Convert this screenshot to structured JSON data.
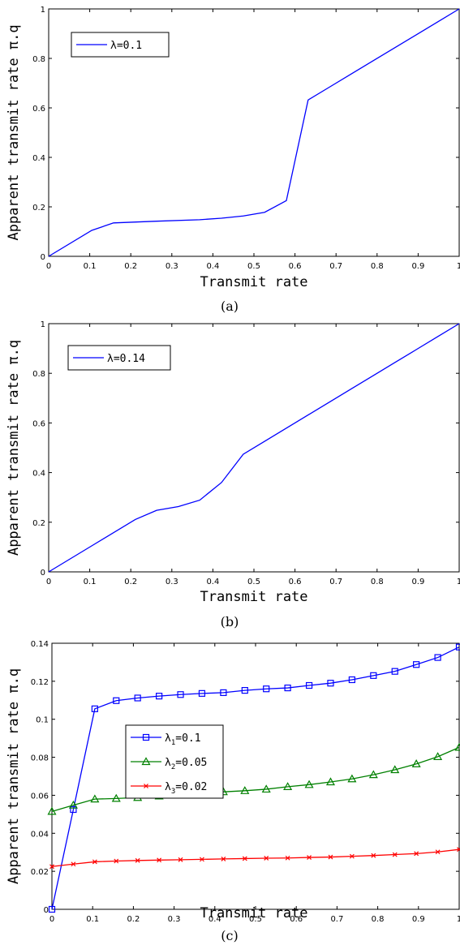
{
  "chart_data": [
    {
      "type": "line",
      "panel": "a",
      "caption": "(a)",
      "xlabel": "Transmit rate",
      "ylabel": "Apparent transmit rate π.q",
      "xlim": [
        0,
        1
      ],
      "ylim": [
        0,
        1
      ],
      "xticks": [
        "0",
        "0.1",
        "0.2",
        "0.3",
        "0.4",
        "0.5",
        "0.6",
        "0.7",
        "0.8",
        "0.9",
        "1"
      ],
      "yticks": [
        "0",
        "0.2",
        "0.4",
        "0.6",
        "0.8",
        "1"
      ],
      "legend_position": "top-left",
      "series": [
        {
          "name": "λ=0.1",
          "color": "#0000ff",
          "marker": "none",
          "x": [
            0,
            0.105,
            0.158,
            0.263,
            0.368,
            0.421,
            0.474,
            0.526,
            0.579,
            0.632,
            0.684,
            0.737,
            0.789,
            0.842,
            0.895,
            0.947,
            1.0
          ],
          "y": [
            0,
            0.105,
            0.135,
            0.142,
            0.148,
            0.154,
            0.163,
            0.178,
            0.225,
            0.632,
            0.684,
            0.737,
            0.789,
            0.842,
            0.895,
            0.947,
            1.0
          ]
        }
      ]
    },
    {
      "type": "line",
      "panel": "b",
      "caption": "(b)",
      "xlabel": "Transmit rate",
      "ylabel": "Apparent transmit rate π.q",
      "xlim": [
        0,
        1
      ],
      "ylim": [
        0,
        1
      ],
      "xticks": [
        "0",
        "0.1",
        "0.2",
        "0.3",
        "0.4",
        "0.5",
        "0.6",
        "0.7",
        "0.8",
        "0.9",
        "1"
      ],
      "yticks": [
        "0",
        "0.2",
        "0.4",
        "0.6",
        "0.8",
        "1"
      ],
      "legend_position": "top-left",
      "series": [
        {
          "name": "λ=0.14",
          "color": "#0000ff",
          "marker": "none",
          "x": [
            0,
            0.105,
            0.211,
            0.263,
            0.316,
            0.368,
            0.421,
            0.474,
            0.526,
            0.579,
            0.632,
            0.684,
            0.737,
            0.789,
            0.842,
            0.895,
            0.947,
            1.0
          ],
          "y": [
            0,
            0.105,
            0.211,
            0.248,
            0.263,
            0.289,
            0.36,
            0.474,
            0.526,
            0.579,
            0.632,
            0.684,
            0.737,
            0.789,
            0.842,
            0.895,
            0.947,
            1.0
          ]
        }
      ]
    },
    {
      "type": "line",
      "panel": "c",
      "caption": "(c)",
      "xlabel": "Transmit rate",
      "ylabel": "Apparent transmit rate π.q",
      "xlim": [
        0,
        1
      ],
      "ylim": [
        0,
        0.14
      ],
      "xticks": [
        "0",
        "0.1",
        "0.2",
        "0.3",
        "0.4",
        "0.5",
        "0.6",
        "0.7",
        "0.8",
        "0.9",
        "1"
      ],
      "yticks": [
        "0",
        "0.02",
        "0.04",
        "0.06",
        "0.08",
        "0.1",
        "0.12",
        "0.14"
      ],
      "legend_position": "center-left",
      "x": [
        0,
        0.0526,
        0.1053,
        0.1579,
        0.2105,
        0.2632,
        0.3158,
        0.3684,
        0.4211,
        0.4737,
        0.5263,
        0.5789,
        0.6316,
        0.6842,
        0.7368,
        0.7895,
        0.8421,
        0.8947,
        0.9474,
        1.0
      ],
      "series": [
        {
          "name": "λ1=0.1",
          "name_base": "λ",
          "name_sub": "1",
          "name_rest": "=0.1",
          "color": "#0000ff",
          "marker": "square",
          "values": [
            0.0,
            0.0525,
            0.1055,
            0.1098,
            0.1112,
            0.1122,
            0.113,
            0.1136,
            0.114,
            0.1152,
            0.116,
            0.1165,
            0.1178,
            0.119,
            0.1208,
            0.123,
            0.1252,
            0.1288,
            0.1325,
            0.138
          ]
        },
        {
          "name": "λ2=0.05",
          "name_base": "λ",
          "name_sub": "2",
          "name_rest": "=0.05",
          "color": "#008000",
          "marker": "triangle",
          "values": [
            0.0515,
            0.0548,
            0.058,
            0.0583,
            0.0588,
            0.0596,
            0.0604,
            0.0612,
            0.0618,
            0.0624,
            0.0632,
            0.0645,
            0.0656,
            0.067,
            0.0686,
            0.0708,
            0.0734,
            0.0765,
            0.0803,
            0.0852
          ]
        },
        {
          "name": "λ3=0.02",
          "name_base": "λ",
          "name_sub": "3",
          "name_rest": "=0.02",
          "color": "#ff0000",
          "marker": "x",
          "values": [
            0.0225,
            0.0238,
            0.025,
            0.0254,
            0.0257,
            0.0259,
            0.0261,
            0.0263,
            0.0265,
            0.0267,
            0.0269,
            0.027,
            0.0273,
            0.0275,
            0.0279,
            0.0283,
            0.0288,
            0.0293,
            0.0302,
            0.0315
          ]
        }
      ]
    }
  ]
}
